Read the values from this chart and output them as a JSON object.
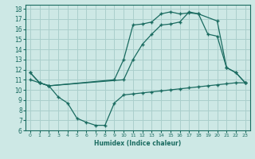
{
  "xlabel": "Humidex (Indice chaleur)",
  "bg_color": "#cde8e5",
  "grid_color": "#aacfcc",
  "line_color": "#1a6b60",
  "xlim": [
    -0.5,
    23.5
  ],
  "ylim": [
    6,
    18.4
  ],
  "xticks": [
    0,
    1,
    2,
    3,
    4,
    5,
    6,
    7,
    8,
    9,
    10,
    11,
    12,
    13,
    14,
    15,
    16,
    17,
    18,
    19,
    20,
    21,
    22,
    23
  ],
  "yticks": [
    6,
    7,
    8,
    9,
    10,
    11,
    12,
    13,
    14,
    15,
    16,
    17,
    18
  ],
  "line1_x": [
    0,
    1,
    2,
    9,
    10,
    11,
    12,
    13,
    14,
    15,
    16,
    17,
    18,
    20,
    21,
    22,
    23
  ],
  "line1_y": [
    11.7,
    10.7,
    10.4,
    11.0,
    13.0,
    16.4,
    16.5,
    16.7,
    17.5,
    17.7,
    17.5,
    17.6,
    17.5,
    16.8,
    12.2,
    11.7,
    10.7
  ],
  "line2_x": [
    0,
    1,
    2,
    10,
    11,
    12,
    13,
    14,
    15,
    16,
    17,
    18,
    19,
    20,
    21,
    22,
    23
  ],
  "line2_y": [
    11.7,
    10.7,
    10.4,
    11.0,
    13.0,
    14.5,
    15.5,
    16.4,
    16.5,
    16.7,
    17.7,
    17.5,
    15.5,
    15.3,
    12.2,
    11.7,
    10.7
  ],
  "line3_x": [
    0,
    1,
    2,
    3,
    4,
    5,
    6,
    7,
    8,
    9,
    10,
    11,
    12,
    13,
    14,
    15,
    16,
    17,
    18,
    19,
    20,
    21,
    22,
    23
  ],
  "line3_y": [
    11.0,
    10.7,
    10.4,
    9.3,
    8.7,
    7.2,
    6.8,
    6.5,
    6.5,
    8.7,
    9.5,
    9.6,
    9.7,
    9.8,
    9.9,
    10.0,
    10.1,
    10.2,
    10.3,
    10.4,
    10.5,
    10.6,
    10.7,
    10.7
  ]
}
